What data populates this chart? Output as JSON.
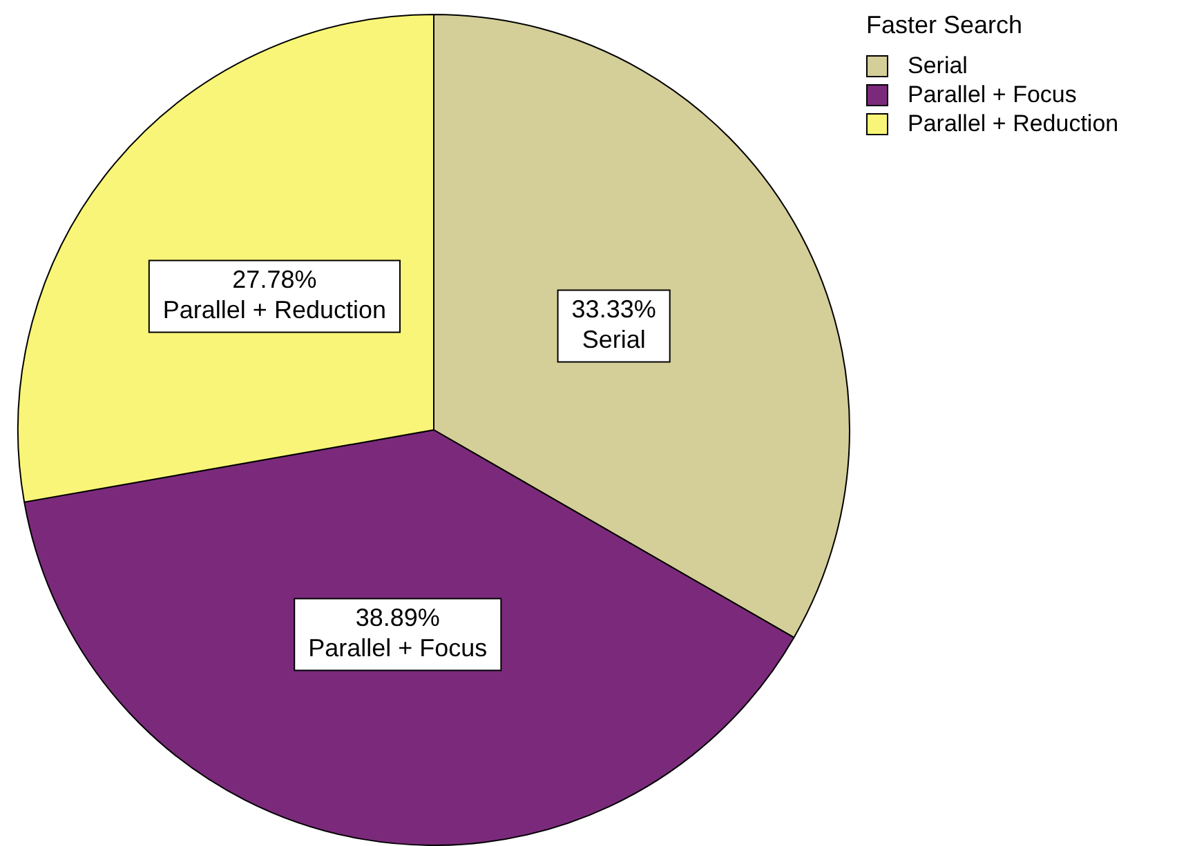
{
  "chart_data": {
    "type": "pie",
    "legend_title": "Faster Search",
    "legend": "top right",
    "categories": [
      "Serial",
      "Parallel + Focus",
      "Parallel + Reduction"
    ],
    "values": [
      33.33,
      38.89,
      27.78
    ],
    "colors": [
      "#d4ce98",
      "#7b2a7b",
      "#f9f578"
    ],
    "value_labels": [
      "33.33%",
      "38.89%",
      "27.78%"
    ]
  }
}
